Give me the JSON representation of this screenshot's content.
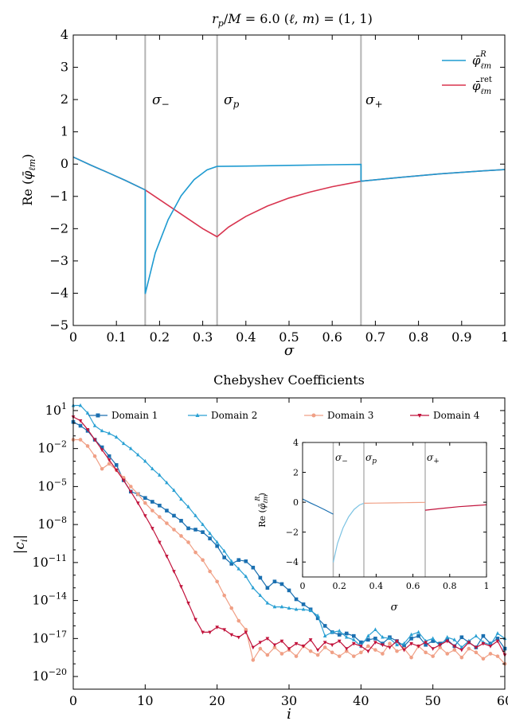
{
  "top": {
    "title": "r_p/M = 6.0   (ℓ, m) = (1, 1)",
    "xlabel": "σ",
    "ylabel": "Re (φ̄_ℓm)",
    "legend": [
      "φ̄_ℓm^R",
      "φ̄_ℓm^ret"
    ],
    "vline_labels": [
      "σ−",
      "σp",
      "σ+"
    ]
  },
  "bottom": {
    "title": "Chebyshev Coefficients",
    "xlabel": "i",
    "ylabel": "|c_i|",
    "legend": [
      "Domain 1",
      "Domain 2",
      "Domain 3",
      "Domain 4"
    ]
  },
  "inset": {
    "xlabel": "σ",
    "ylabel": "Re (φ̄_ℓm^R)",
    "vline_labels": [
      "σ−",
      "σp",
      "σ+"
    ]
  },
  "chart_data": [
    {
      "type": "line",
      "title": "r_p/M = 6.0   (ℓ, m) = (1, 1)",
      "xlabel": "σ",
      "ylabel": "Re (φ̄_ℓm)",
      "xlim": [
        0,
        1
      ],
      "ylim": [
        -5,
        4
      ],
      "xticks": [
        0,
        0.1,
        0.2,
        0.3,
        0.4,
        0.5,
        0.6,
        0.7,
        0.8,
        0.9,
        1
      ],
      "yticks": [
        -5,
        -4,
        -3,
        -2,
        -1,
        0,
        1,
        2,
        3,
        4
      ],
      "vlines": [
        0.1667,
        0.3333,
        0.6667
      ],
      "legend_position": "top-right",
      "series": [
        {
          "name": "φ̄_ℓm^R",
          "color": "#1f9bd1",
          "x": [
            0,
            0.04,
            0.08,
            0.12,
            0.1667,
            0.1667,
            0.19,
            0.22,
            0.25,
            0.28,
            0.31,
            0.3333,
            0.4,
            0.5,
            0.6,
            0.6667,
            0.6667,
            0.75,
            0.85,
            0.95,
            1.0
          ],
          "y": [
            0.22,
            -0.03,
            -0.26,
            -0.5,
            -0.8,
            -4.02,
            -2.75,
            -1.72,
            -0.98,
            -0.48,
            -0.18,
            -0.07,
            -0.06,
            -0.04,
            -0.02,
            -0.01,
            -0.53,
            -0.42,
            -0.3,
            -0.21,
            -0.17
          ]
        },
        {
          "name": "φ̄_ℓm^ret",
          "color": "#d8344f",
          "x": [
            0,
            0.04,
            0.08,
            0.12,
            0.1667,
            0.2,
            0.25,
            0.3,
            0.3333,
            0.36,
            0.4,
            0.45,
            0.5,
            0.55,
            0.6,
            0.6667,
            0.75,
            0.85,
            0.95,
            1.0
          ],
          "y": [
            0.22,
            -0.03,
            -0.26,
            -0.5,
            -0.8,
            -1.1,
            -1.55,
            -2.0,
            -2.25,
            -1.95,
            -1.62,
            -1.3,
            -1.05,
            -0.86,
            -0.7,
            -0.53,
            -0.42,
            -0.3,
            -0.21,
            -0.17
          ]
        }
      ]
    },
    {
      "type": "line",
      "title": "Chebyshev Coefficients",
      "xlabel": "i",
      "ylabel": "|c_i|",
      "yscale": "log",
      "xlim": [
        0,
        60
      ],
      "ylim_log10": [
        -21,
        2
      ],
      "xticks": [
        0,
        10,
        20,
        30,
        40,
        50,
        60
      ],
      "ytick_exponents": [
        1,
        -2,
        -5,
        -8,
        -11,
        -14,
        -17,
        -20
      ],
      "legend_position": "top",
      "series": [
        {
          "name": "Domain 1",
          "color": "#1a6fb0",
          "marker": "square",
          "log10_values": [
            0.1,
            -0.2,
            -0.6,
            -1.3,
            -1.9,
            -2.6,
            -3.3,
            -4.5,
            -5.4,
            -5.6,
            -5.9,
            -6.2,
            -6.5,
            -6.9,
            -7.3,
            -7.7,
            -8.3,
            -8.4,
            -8.6,
            -9.1,
            -9.7,
            -10.6,
            -11.1,
            -10.8,
            -10.9,
            -11.4,
            -12.2,
            -13.0,
            -12.5,
            -12.7,
            -13.2,
            -13.9,
            -14.3,
            -14.7,
            -15.4,
            -16.0,
            -16.5,
            -16.7,
            -16.6,
            -16.8,
            -17.3,
            -17.1,
            -17.0,
            -17.4,
            -16.9,
            -17.2,
            -17.6,
            -17.0,
            -16.8,
            -17.5,
            -17.2,
            -17.4,
            -17.1,
            -17.6,
            -16.9,
            -17.3,
            -17.7,
            -16.8,
            -17.4,
            -17.0,
            -17.8
          ]
        },
        {
          "name": "Domain 2",
          "color": "#2aa0d3",
          "marker": "triangle",
          "log10_values": [
            1.4,
            1.4,
            0.8,
            -0.2,
            -0.6,
            -0.8,
            -1.1,
            -1.6,
            -2.0,
            -2.5,
            -3.0,
            -3.6,
            -4.1,
            -4.7,
            -5.3,
            -6.0,
            -6.6,
            -7.3,
            -8.0,
            -8.7,
            -9.4,
            -10.1,
            -10.9,
            -11.5,
            -12.1,
            -13.0,
            -13.6,
            -14.2,
            -14.5,
            -14.5,
            -14.6,
            -14.7,
            -14.7,
            -14.8,
            -15.2,
            -16.8,
            -16.5,
            -16.4,
            -16.9,
            -17.1,
            -17.6,
            -16.8,
            -16.3,
            -16.9,
            -17.0,
            -17.5,
            -17.4,
            -16.7,
            -16.5,
            -17.2,
            -17.0,
            -17.6,
            -16.9,
            -17.1,
            -17.7,
            -17.2,
            -16.8,
            -17.3,
            -17.5,
            -16.6,
            -17.0
          ]
        },
        {
          "name": "Domain 3",
          "color": "#f0a086",
          "marker": "circle",
          "log10_values": [
            -1.3,
            -1.3,
            -1.8,
            -2.6,
            -3.6,
            -3.2,
            -3.7,
            -4.3,
            -5.0,
            -5.6,
            -6.3,
            -6.9,
            -7.4,
            -7.9,
            -8.4,
            -8.9,
            -9.4,
            -10.2,
            -10.8,
            -11.7,
            -12.5,
            -13.6,
            -14.6,
            -15.6,
            -16.3,
            -18.7,
            -17.8,
            -18.3,
            -17.7,
            -18.2,
            -17.9,
            -18.4,
            -17.6,
            -18.0,
            -18.3,
            -17.7,
            -18.1,
            -18.4,
            -18.0,
            -18.4,
            -18.1,
            -17.6,
            -17.9,
            -18.2,
            -17.4,
            -18.0,
            -17.8,
            -18.5,
            -17.6,
            -18.1,
            -18.4,
            -17.7,
            -18.2,
            -17.9,
            -18.5,
            -17.8,
            -18.1,
            -18.6,
            -18.2,
            -18.4,
            -19.0
          ]
        },
        {
          "name": "Domain 4",
          "color": "#c1123b",
          "marker": "triangle-down",
          "log10_values": [
            0.5,
            0.2,
            -0.5,
            -1.3,
            -2.1,
            -2.9,
            -3.7,
            -4.5,
            -5.4,
            -6.3,
            -7.3,
            -8.3,
            -9.4,
            -10.5,
            -11.7,
            -12.9,
            -14.2,
            -15.5,
            -16.5,
            -16.5,
            -16.1,
            -16.3,
            -16.7,
            -16.9,
            -16.5,
            -17.7,
            -17.3,
            -17.0,
            -17.5,
            -17.2,
            -17.8,
            -17.4,
            -17.6,
            -17.1,
            -17.9,
            -17.3,
            -17.5,
            -17.2,
            -17.8,
            -17.4,
            -17.6,
            -18.0,
            -17.3,
            -17.5,
            -17.7,
            -17.2,
            -17.9,
            -17.4,
            -17.6,
            -17.3,
            -17.8,
            -17.5,
            -17.2,
            -17.6,
            -17.9,
            -17.3,
            -17.7,
            -17.4,
            -17.6,
            -17.2,
            -18.3
          ]
        }
      ]
    },
    {
      "type": "line",
      "xlabel": "σ",
      "ylabel": "Re (φ̄_ℓm^R)",
      "xlim": [
        0,
        1
      ],
      "ylim": [
        -5,
        4
      ],
      "xticks": [
        0,
        0.2,
        0.4,
        0.6,
        0.8,
        1
      ],
      "yticks": [
        -4,
        -2,
        0,
        2,
        4
      ],
      "vlines": [
        0.1667,
        0.3333,
        0.6667
      ],
      "series": [
        {
          "color": "#1a6fb0",
          "x": [
            0,
            0.04,
            0.08,
            0.12,
            0.1667
          ],
          "y": [
            0.22,
            -0.03,
            -0.26,
            -0.5,
            -0.8
          ]
        },
        {
          "color": "#7cc3e3",
          "x": [
            0.1667,
            0.19,
            0.22,
            0.25,
            0.28,
            0.31,
            0.3333
          ],
          "y": [
            -4.02,
            -2.75,
            -1.72,
            -0.98,
            -0.48,
            -0.18,
            -0.07
          ]
        },
        {
          "color": "#f0a086",
          "x": [
            0.3333,
            0.4,
            0.5,
            0.6,
            0.6667
          ],
          "y": [
            -0.07,
            -0.06,
            -0.04,
            -0.02,
            -0.01
          ]
        },
        {
          "color": "#c1123b",
          "x": [
            0.6667,
            0.75,
            0.85,
            0.95,
            1.0
          ],
          "y": [
            -0.53,
            -0.42,
            -0.3,
            -0.21,
            -0.17
          ]
        }
      ]
    }
  ]
}
